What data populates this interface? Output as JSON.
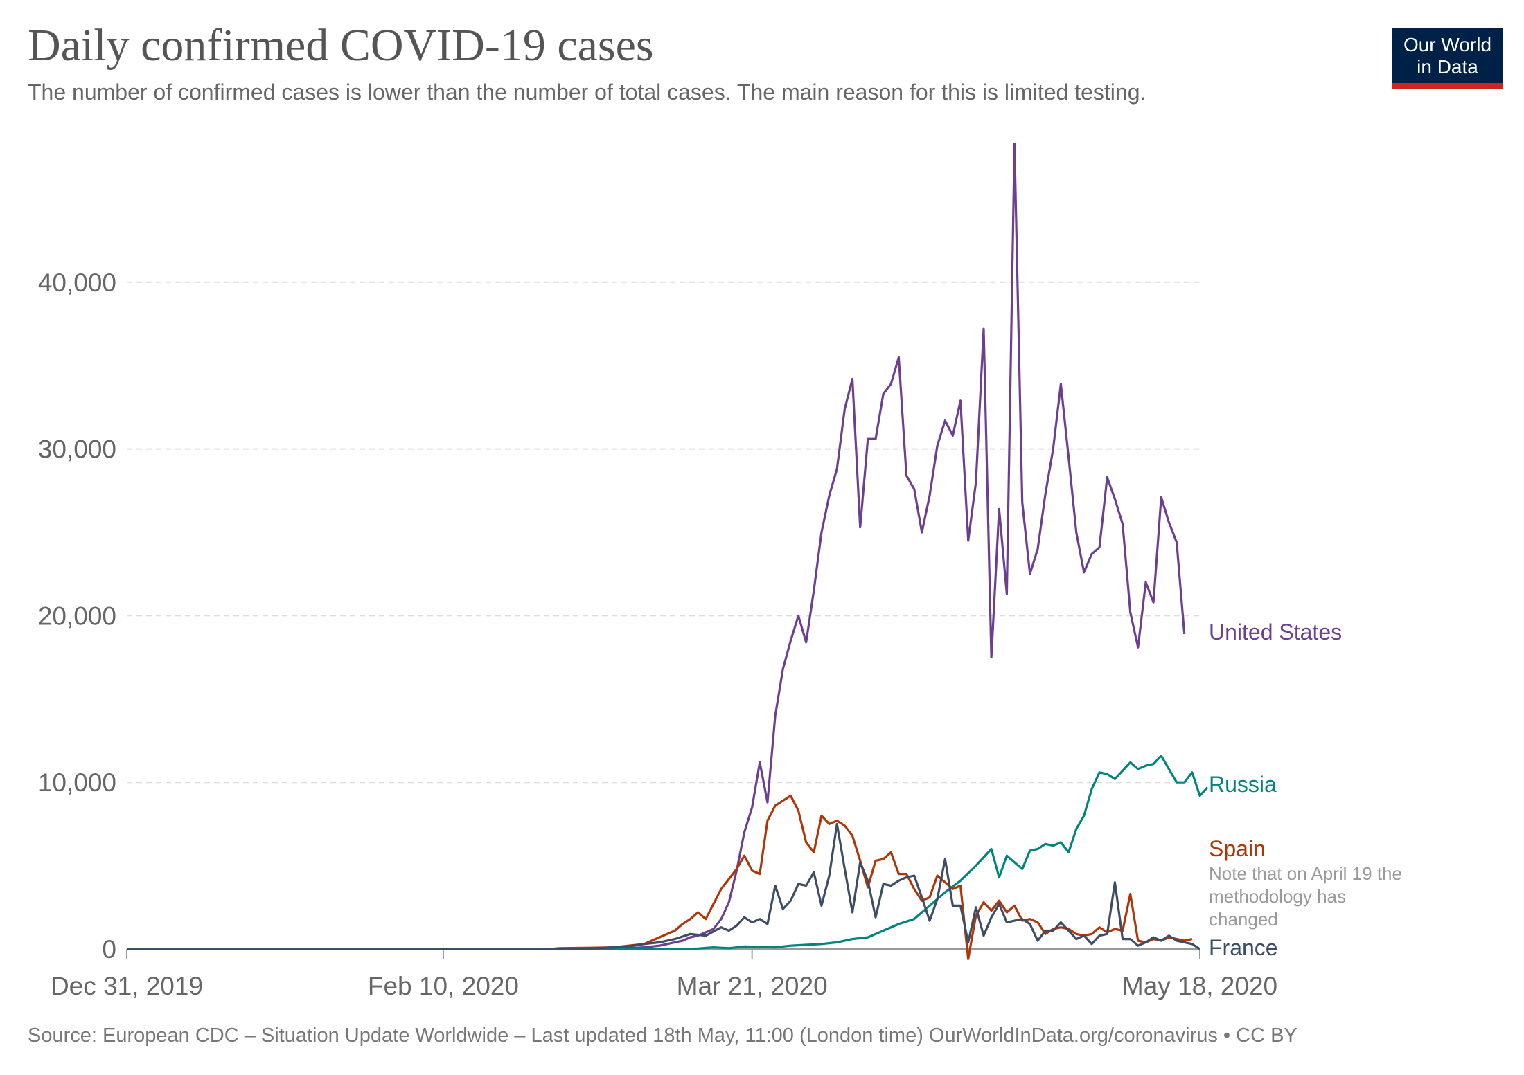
{
  "chart_data": {
    "type": "line",
    "title": "Daily confirmed COVID-19 cases",
    "subtitle": "The number of confirmed cases is lower than the number of total cases. The main reason for this is limited testing.",
    "x_ticks": [
      "Dec 31, 2019",
      "Feb 10, 2020",
      "Mar 21, 2020",
      "May 18, 2020"
    ],
    "y_ticks": [
      "0",
      "10,000",
      "20,000",
      "30,000",
      "40,000"
    ],
    "x_start": "2019-12-31",
    "x_end": "2020-05-18",
    "ylim": [
      0,
      48000
    ],
    "grid": true,
    "note": [
      "Note that on April 19 the",
      "methodology has",
      "changed"
    ],
    "series": [
      {
        "name": "United States",
        "color": "#6d3e91",
        "points": [
          [
            "2019-12-31",
            0
          ],
          [
            "2020-02-29",
            0
          ],
          [
            "2020-03-01",
            10
          ],
          [
            "2020-03-03",
            20
          ],
          [
            "2020-03-05",
            50
          ],
          [
            "2020-03-07",
            100
          ],
          [
            "2020-03-09",
            200
          ],
          [
            "2020-03-11",
            400
          ],
          [
            "2020-03-12",
            500
          ],
          [
            "2020-03-13",
            700
          ],
          [
            "2020-03-14",
            800
          ],
          [
            "2020-03-15",
            1000
          ],
          [
            "2020-03-16",
            1200
          ],
          [
            "2020-03-17",
            1800
          ],
          [
            "2020-03-18",
            2800
          ],
          [
            "2020-03-19",
            4700
          ],
          [
            "2020-03-20",
            7000
          ],
          [
            "2020-03-21",
            8500
          ],
          [
            "2020-03-22",
            11200
          ],
          [
            "2020-03-23",
            8800
          ],
          [
            "2020-03-24",
            14000
          ],
          [
            "2020-03-25",
            16800
          ],
          [
            "2020-03-26",
            18500
          ],
          [
            "2020-03-27",
            20000
          ],
          [
            "2020-03-28",
            18400
          ],
          [
            "2020-03-29",
            21500
          ],
          [
            "2020-03-30",
            25000
          ],
          [
            "2020-03-31",
            27200
          ],
          [
            "2020-04-01",
            28800
          ],
          [
            "2020-04-02",
            32400
          ],
          [
            "2020-04-03",
            34200
          ],
          [
            "2020-04-04",
            25300
          ],
          [
            "2020-04-05",
            30600
          ],
          [
            "2020-04-06",
            30600
          ],
          [
            "2020-04-07",
            33300
          ],
          [
            "2020-04-08",
            33900
          ],
          [
            "2020-04-09",
            35500
          ],
          [
            "2020-04-10",
            28400
          ],
          [
            "2020-04-11",
            27600
          ],
          [
            "2020-04-12",
            25000
          ],
          [
            "2020-04-13",
            27200
          ],
          [
            "2020-04-14",
            30200
          ],
          [
            "2020-04-15",
            31700
          ],
          [
            "2020-04-16",
            30800
          ],
          [
            "2020-04-17",
            32900
          ],
          [
            "2020-04-18",
            24500
          ],
          [
            "2020-04-19",
            28000
          ],
          [
            "2020-04-20",
            37200
          ],
          [
            "2020-04-21",
            17500
          ],
          [
            "2020-04-22",
            26400
          ],
          [
            "2020-04-23",
            21300
          ],
          [
            "2020-04-24",
            48300
          ],
          [
            "2020-04-25",
            26800
          ],
          [
            "2020-04-26",
            22500
          ],
          [
            "2020-04-27",
            24000
          ],
          [
            "2020-04-28",
            27300
          ],
          [
            "2020-04-29",
            30000
          ],
          [
            "2020-04-30",
            33900
          ],
          [
            "2020-05-01",
            29500
          ],
          [
            "2020-05-02",
            25000
          ],
          [
            "2020-05-03",
            22600
          ],
          [
            "2020-05-04",
            23700
          ],
          [
            "2020-05-05",
            24100
          ],
          [
            "2020-05-06",
            28300
          ],
          [
            "2020-05-07",
            27000
          ],
          [
            "2020-05-08",
            25500
          ],
          [
            "2020-05-09",
            20200
          ],
          [
            "2020-05-10",
            18100
          ],
          [
            "2020-05-11",
            22000
          ],
          [
            "2020-05-12",
            20800
          ],
          [
            "2020-05-13",
            27100
          ],
          [
            "2020-05-14",
            25600
          ],
          [
            "2020-05-15",
            24400
          ],
          [
            "2020-05-16",
            18900
          ]
        ]
      },
      {
        "name": "Russia",
        "color": "#00847e",
        "points": [
          [
            "2019-12-31",
            0
          ],
          [
            "2020-03-12",
            0
          ],
          [
            "2020-03-14",
            30
          ],
          [
            "2020-03-16",
            100
          ],
          [
            "2020-03-18",
            50
          ],
          [
            "2020-03-20",
            150
          ],
          [
            "2020-03-24",
            100
          ],
          [
            "2020-03-26",
            200
          ],
          [
            "2020-03-28",
            250
          ],
          [
            "2020-03-30",
            300
          ],
          [
            "2020-04-01",
            400
          ],
          [
            "2020-04-03",
            600
          ],
          [
            "2020-04-05",
            700
          ],
          [
            "2020-04-07",
            1100
          ],
          [
            "2020-04-09",
            1500
          ],
          [
            "2020-04-11",
            1800
          ],
          [
            "2020-04-13",
            2600
          ],
          [
            "2020-04-15",
            3400
          ],
          [
            "2020-04-17",
            4100
          ],
          [
            "2020-04-19",
            5000
          ],
          [
            "2020-04-21",
            6000
          ],
          [
            "2020-04-22",
            4300
          ],
          [
            "2020-04-23",
            5600
          ],
          [
            "2020-04-24",
            5200
          ],
          [
            "2020-04-25",
            4800
          ],
          [
            "2020-04-26",
            5900
          ],
          [
            "2020-04-27",
            6000
          ],
          [
            "2020-04-28",
            6300
          ],
          [
            "2020-04-29",
            6200
          ],
          [
            "2020-04-30",
            6400
          ],
          [
            "2020-05-01",
            5800
          ],
          [
            "2020-05-02",
            7200
          ],
          [
            "2020-05-03",
            8000
          ],
          [
            "2020-05-04",
            9600
          ],
          [
            "2020-05-05",
            10600
          ],
          [
            "2020-05-06",
            10500
          ],
          [
            "2020-05-07",
            10200
          ],
          [
            "2020-05-08",
            10700
          ],
          [
            "2020-05-09",
            11200
          ],
          [
            "2020-05-10",
            10800
          ],
          [
            "2020-05-11",
            11000
          ],
          [
            "2020-05-12",
            11100
          ],
          [
            "2020-05-13",
            11600
          ],
          [
            "2020-05-14",
            10800
          ],
          [
            "2020-05-15",
            10000
          ],
          [
            "2020-05-16",
            10000
          ],
          [
            "2020-05-17",
            10600
          ],
          [
            "2020-05-18",
            9200
          ],
          [
            "2020-05-19",
            9700
          ]
        ]
      },
      {
        "name": "Spain",
        "color": "#b13507",
        "points": [
          [
            "2019-12-31",
            0
          ],
          [
            "2020-02-24",
            0
          ],
          [
            "2020-02-25",
            50
          ],
          [
            "2020-03-01",
            80
          ],
          [
            "2020-03-03",
            100
          ],
          [
            "2020-03-05",
            200
          ],
          [
            "2020-03-07",
            300
          ],
          [
            "2020-03-08",
            500
          ],
          [
            "2020-03-09",
            700
          ],
          [
            "2020-03-10",
            900
          ],
          [
            "2020-03-11",
            1100
          ],
          [
            "2020-03-12",
            1500
          ],
          [
            "2020-03-13",
            1800
          ],
          [
            "2020-03-14",
            2200
          ],
          [
            "2020-03-15",
            1800
          ],
          [
            "2020-03-16",
            2700
          ],
          [
            "2020-03-17",
            3600
          ],
          [
            "2020-03-18",
            4200
          ],
          [
            "2020-03-19",
            4800
          ],
          [
            "2020-03-20",
            5600
          ],
          [
            "2020-03-21",
            4700
          ],
          [
            "2020-03-22",
            4500
          ],
          [
            "2020-03-23",
            7700
          ],
          [
            "2020-03-24",
            8600
          ],
          [
            "2020-03-25",
            8900
          ],
          [
            "2020-03-26",
            9200
          ],
          [
            "2020-03-27",
            8300
          ],
          [
            "2020-03-28",
            6400
          ],
          [
            "2020-03-29",
            5800
          ],
          [
            "2020-03-30",
            8000
          ],
          [
            "2020-03-31",
            7500
          ],
          [
            "2020-04-01",
            7700
          ],
          [
            "2020-04-02",
            7400
          ],
          [
            "2020-04-03",
            6800
          ],
          [
            "2020-04-04",
            5300
          ],
          [
            "2020-04-05",
            3700
          ],
          [
            "2020-04-06",
            5300
          ],
          [
            "2020-04-07",
            5400
          ],
          [
            "2020-04-08",
            5800
          ],
          [
            "2020-04-09",
            4500
          ],
          [
            "2020-04-10",
            4500
          ],
          [
            "2020-04-11",
            3600
          ],
          [
            "2020-04-12",
            2900
          ],
          [
            "2020-04-13",
            3100
          ],
          [
            "2020-04-14",
            4400
          ],
          [
            "2020-04-15",
            4000
          ],
          [
            "2020-04-16",
            3600
          ],
          [
            "2020-04-17",
            3800
          ],
          [
            "2020-04-18",
            -600
          ],
          [
            "2020-04-19",
            2000
          ],
          [
            "2020-04-20",
            2800
          ],
          [
            "2020-04-21",
            2300
          ],
          [
            "2020-04-22",
            2900
          ],
          [
            "2020-04-23",
            2200
          ],
          [
            "2020-04-24",
            2600
          ],
          [
            "2020-04-25",
            1700
          ],
          [
            "2020-04-26",
            1800
          ],
          [
            "2020-04-27",
            1600
          ],
          [
            "2020-04-28",
            900
          ],
          [
            "2020-04-29",
            1200
          ],
          [
            "2020-04-30",
            1300
          ],
          [
            "2020-05-01",
            1200
          ],
          [
            "2020-05-02",
            900
          ],
          [
            "2020-05-03",
            800
          ],
          [
            "2020-05-04",
            900
          ],
          [
            "2020-05-05",
            1300
          ],
          [
            "2020-05-06",
            1000
          ],
          [
            "2020-05-07",
            1200
          ],
          [
            "2020-05-08",
            1100
          ],
          [
            "2020-05-09",
            3300
          ],
          [
            "2020-05-10",
            500
          ],
          [
            "2020-05-11",
            400
          ],
          [
            "2020-05-12",
            600
          ],
          [
            "2020-05-13",
            500
          ],
          [
            "2020-05-14",
            700
          ],
          [
            "2020-05-15",
            600
          ],
          [
            "2020-05-16",
            500
          ],
          [
            "2020-05-17",
            600
          ]
        ]
      },
      {
        "name": "France",
        "color": "#3c4e66",
        "points": [
          [
            "2019-12-31",
            0
          ],
          [
            "2020-02-28",
            0
          ],
          [
            "2020-03-01",
            50
          ],
          [
            "2020-03-05",
            150
          ],
          [
            "2020-03-07",
            300
          ],
          [
            "2020-03-09",
            400
          ],
          [
            "2020-03-11",
            600
          ],
          [
            "2020-03-13",
            900
          ],
          [
            "2020-03-15",
            800
          ],
          [
            "2020-03-17",
            1300
          ],
          [
            "2020-03-18",
            1100
          ],
          [
            "2020-03-19",
            1400
          ],
          [
            "2020-03-20",
            1900
          ],
          [
            "2020-03-21",
            1600
          ],
          [
            "2020-03-22",
            1800
          ],
          [
            "2020-03-23",
            1500
          ],
          [
            "2020-03-24",
            3800
          ],
          [
            "2020-03-25",
            2400
          ],
          [
            "2020-03-26",
            2900
          ],
          [
            "2020-03-27",
            3900
          ],
          [
            "2020-03-28",
            3800
          ],
          [
            "2020-03-29",
            4600
          ],
          [
            "2020-03-30",
            2600
          ],
          [
            "2020-03-31",
            4400
          ],
          [
            "2020-04-01",
            7500
          ],
          [
            "2020-04-02",
            4800
          ],
          [
            "2020-04-03",
            2200
          ],
          [
            "2020-04-04",
            5200
          ],
          [
            "2020-04-05",
            4100
          ],
          [
            "2020-04-06",
            1900
          ],
          [
            "2020-04-07",
            3900
          ],
          [
            "2020-04-08",
            3800
          ],
          [
            "2020-04-09",
            4100
          ],
          [
            "2020-04-10",
            4300
          ],
          [
            "2020-04-11",
            4400
          ],
          [
            "2020-04-12",
            3100
          ],
          [
            "2020-04-13",
            1700
          ],
          [
            "2020-04-14",
            3000
          ],
          [
            "2020-04-15",
            5400
          ],
          [
            "2020-04-16",
            2600
          ],
          [
            "2020-04-17",
            2600
          ],
          [
            "2020-04-18",
            400
          ],
          [
            "2020-04-19",
            2500
          ],
          [
            "2020-04-20",
            800
          ],
          [
            "2020-04-21",
            1900
          ],
          [
            "2020-04-22",
            2700
          ],
          [
            "2020-04-23",
            1600
          ],
          [
            "2020-04-24",
            1700
          ],
          [
            "2020-04-25",
            1800
          ],
          [
            "2020-04-26",
            1500
          ],
          [
            "2020-04-27",
            500
          ],
          [
            "2020-04-28",
            1100
          ],
          [
            "2020-04-29",
            1100
          ],
          [
            "2020-04-30",
            1600
          ],
          [
            "2020-05-01",
            1100
          ],
          [
            "2020-05-02",
            600
          ],
          [
            "2020-05-03",
            800
          ],
          [
            "2020-05-04",
            300
          ],
          [
            "2020-05-05",
            800
          ],
          [
            "2020-05-06",
            900
          ],
          [
            "2020-05-07",
            4000
          ],
          [
            "2020-05-08",
            600
          ],
          [
            "2020-05-09",
            600
          ],
          [
            "2020-05-10",
            200
          ],
          [
            "2020-05-11",
            400
          ],
          [
            "2020-05-12",
            700
          ],
          [
            "2020-05-13",
            500
          ],
          [
            "2020-05-14",
            800
          ],
          [
            "2020-05-15",
            500
          ],
          [
            "2020-05-16",
            400
          ],
          [
            "2020-05-17",
            300
          ],
          [
            "2020-05-18",
            0
          ]
        ]
      }
    ]
  },
  "logo": {
    "line1": "Our World",
    "line2": "in Data"
  },
  "source": "Source: European CDC – Situation Update Worldwide – Last updated 18th May, 11:00 (London time) OurWorldInData.org/coronavirus • CC BY"
}
